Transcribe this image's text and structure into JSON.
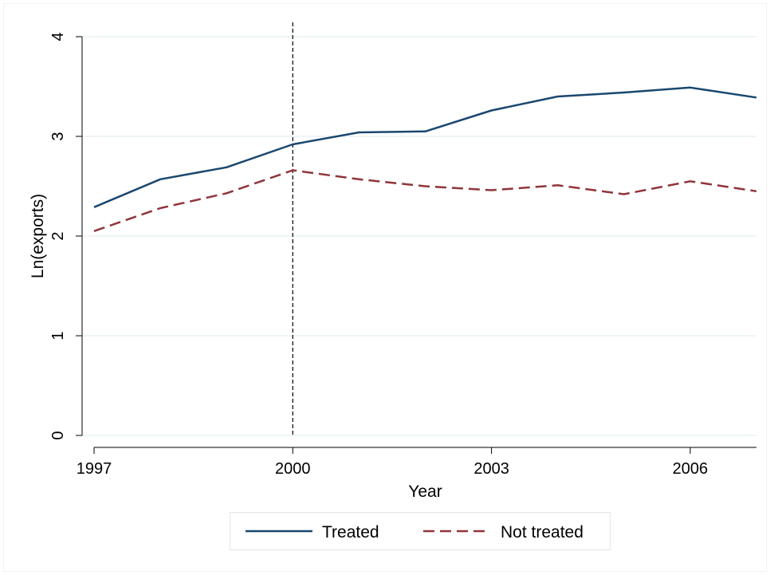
{
  "chart_data": {
    "type": "line",
    "title": "",
    "xlabel": "Year",
    "ylabel": "Ln(exports)",
    "xlim": [
      1997,
      2007
    ],
    "ylim": [
      0,
      4
    ],
    "x": [
      1997,
      1998,
      1999,
      2000,
      2001,
      2002,
      2003,
      2004,
      2005,
      2006,
      2007
    ],
    "x_ticks": [
      "1997",
      "2000",
      "2003",
      "2006"
    ],
    "y_ticks": [
      "0",
      "1",
      "2",
      "3",
      "4"
    ],
    "grid": true,
    "reference_line": {
      "axis": "x",
      "value": 2000,
      "style": "dashed",
      "color": "#000000"
    },
    "legend_position": "bottom",
    "series": [
      {
        "name": "Treated",
        "color": "#1a476f",
        "style": "solid",
        "values": [
          2.29,
          2.57,
          2.69,
          2.92,
          3.04,
          3.05,
          3.26,
          3.4,
          3.44,
          3.49,
          3.39
        ]
      },
      {
        "name": "Not treated",
        "color": "#90353b",
        "style": "dashed",
        "values": [
          2.05,
          2.28,
          2.43,
          2.66,
          2.57,
          2.5,
          2.46,
          2.51,
          2.42,
          2.55,
          2.45
        ]
      }
    ]
  }
}
